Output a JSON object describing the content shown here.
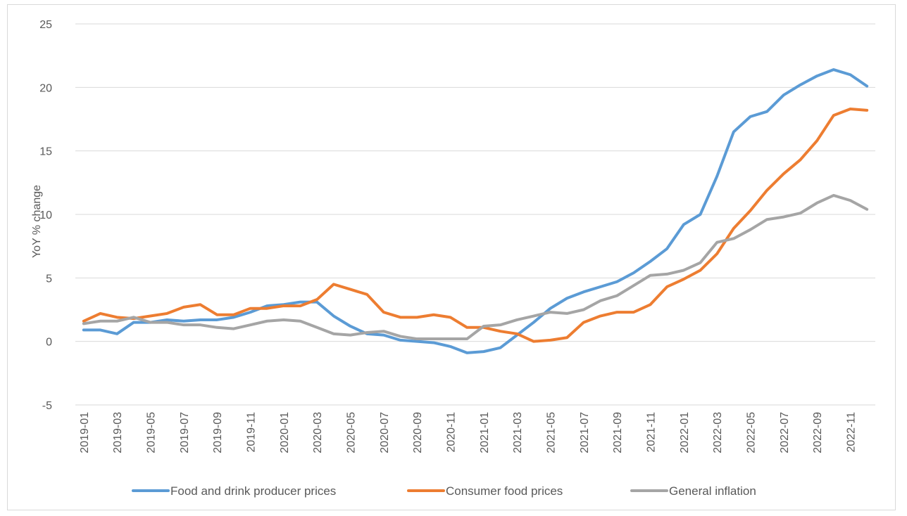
{
  "chart_data": {
    "type": "line",
    "title": "",
    "xlabel": "",
    "ylabel": "YoY % change",
    "ylim": [
      -5,
      25
    ],
    "yticks": [
      -5,
      0,
      5,
      10,
      15,
      20,
      25
    ],
    "grid": "horizontal",
    "legend_position": "bottom",
    "x": [
      "2019-01",
      "2019-02",
      "2019-03",
      "2019-04",
      "2019-05",
      "2019-06",
      "2019-07",
      "2019-08",
      "2019-09",
      "2019-10",
      "2019-11",
      "2019-12",
      "2020-01",
      "2020-02",
      "2020-03",
      "2020-04",
      "2020-05",
      "2020-06",
      "2020-07",
      "2020-08",
      "2020-09",
      "2020-10",
      "2020-11",
      "2020-12",
      "2021-01",
      "2021-02",
      "2021-03",
      "2021-04",
      "2021-05",
      "2021-06",
      "2021-07",
      "2021-08",
      "2021-09",
      "2021-10",
      "2021-11",
      "2021-12",
      "2022-01",
      "2022-02",
      "2022-03",
      "2022-04",
      "2022-05",
      "2022-06",
      "2022-07",
      "2022-08",
      "2022-09",
      "2022-10",
      "2022-11",
      "2022-12"
    ],
    "x_tick_labels": [
      "2019-01",
      "2019-03",
      "2019-05",
      "2019-07",
      "2019-09",
      "2019-11",
      "2020-01",
      "2020-03",
      "2020-05",
      "2020-07",
      "2020-09",
      "2020-11",
      "2021-01",
      "2021-03",
      "2021-05",
      "2021-07",
      "2021-09",
      "2021-11",
      "2022-01",
      "2022-03",
      "2022-05",
      "2022-07",
      "2022-09",
      "2022-11"
    ],
    "series": [
      {
        "name": "Food and drink producer prices",
        "color": "#5b9bd5",
        "values": [
          0.9,
          0.9,
          0.6,
          1.5,
          1.5,
          1.7,
          1.6,
          1.7,
          1.7,
          1.9,
          2.3,
          2.8,
          2.9,
          3.1,
          3.1,
          2.0,
          1.2,
          0.6,
          0.5,
          0.1,
          0.0,
          -0.1,
          -0.4,
          -0.9,
          -0.8,
          -0.5,
          0.5,
          1.5,
          2.6,
          3.4,
          3.9,
          4.3,
          4.7,
          5.4,
          6.3,
          7.3,
          9.2,
          10.0,
          13.0,
          16.5,
          17.7,
          18.1,
          19.4,
          20.2,
          20.9,
          21.4,
          21.0,
          20.1
        ]
      },
      {
        "name": "Consumer food prices",
        "color": "#ed7d31",
        "values": [
          1.6,
          2.2,
          1.9,
          1.8,
          2.0,
          2.2,
          2.7,
          2.9,
          2.1,
          2.1,
          2.6,
          2.6,
          2.8,
          2.8,
          3.3,
          4.5,
          4.1,
          3.7,
          2.3,
          1.9,
          1.9,
          2.1,
          1.9,
          1.1,
          1.1,
          0.8,
          0.6,
          0.0,
          0.1,
          0.3,
          1.5,
          2.0,
          2.3,
          2.3,
          2.9,
          4.3,
          4.9,
          5.6,
          6.9,
          8.9,
          10.3,
          11.9,
          13.2,
          14.3,
          15.8,
          17.8,
          18.3,
          18.2
        ]
      },
      {
        "name": "General inflation",
        "color": "#a5a5a5",
        "values": [
          1.4,
          1.6,
          1.6,
          1.9,
          1.5,
          1.5,
          1.3,
          1.3,
          1.1,
          1.0,
          1.3,
          1.6,
          1.7,
          1.6,
          1.1,
          0.6,
          0.5,
          0.7,
          0.8,
          0.4,
          0.2,
          0.2,
          0.2,
          0.2,
          1.2,
          1.3,
          1.7,
          2.0,
          2.3,
          2.2,
          2.5,
          3.2,
          3.6,
          4.4,
          5.2,
          5.3,
          5.6,
          6.2,
          7.8,
          8.1,
          8.8,
          9.6,
          9.8,
          10.1,
          10.9,
          11.5,
          11.1,
          10.4
        ]
      }
    ]
  }
}
